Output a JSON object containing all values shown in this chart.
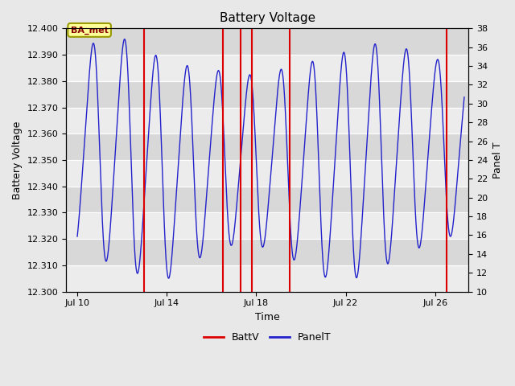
{
  "title": "Battery Voltage",
  "xlabel": "Time",
  "ylabel_left": "Battery Voltage",
  "ylabel_right": "Panel T",
  "xlim_days": [
    9.5,
    27.5
  ],
  "ylim_left": [
    12.3,
    12.4
  ],
  "ylim_right": [
    10,
    38
  ],
  "x_ticks_days": [
    10,
    14,
    18,
    22,
    26
  ],
  "x_tick_labels": [
    "Jul 10",
    "Jul 14",
    "Jul 18",
    "Jul 22",
    "Jul 26"
  ],
  "y_ticks_left": [
    12.3,
    12.31,
    12.32,
    12.33,
    12.34,
    12.35,
    12.36,
    12.37,
    12.38,
    12.39,
    12.4
  ],
  "y_ticks_right": [
    10,
    12,
    14,
    16,
    18,
    20,
    22,
    24,
    26,
    28,
    30,
    32,
    34,
    36,
    38
  ],
  "red_vlines_days": [
    13.0,
    16.5,
    17.3,
    17.8,
    19.5,
    26.5
  ],
  "bg_color": "#e8e8e8",
  "plot_bg_color_light": "#ececec",
  "plot_bg_color_dark": "#d8d8d8",
  "grid_color": "#ffffff",
  "line_blue_color": "#2222cc",
  "line_red_color": "#dd0000",
  "legend_label_red": "BattV",
  "legend_label_blue": "PanelT",
  "annotation_text": "BA_met",
  "annotation_bg": "#ffff99",
  "annotation_border": "#999900",
  "figsize": [
    6.4,
    4.8
  ],
  "dpi": 100
}
